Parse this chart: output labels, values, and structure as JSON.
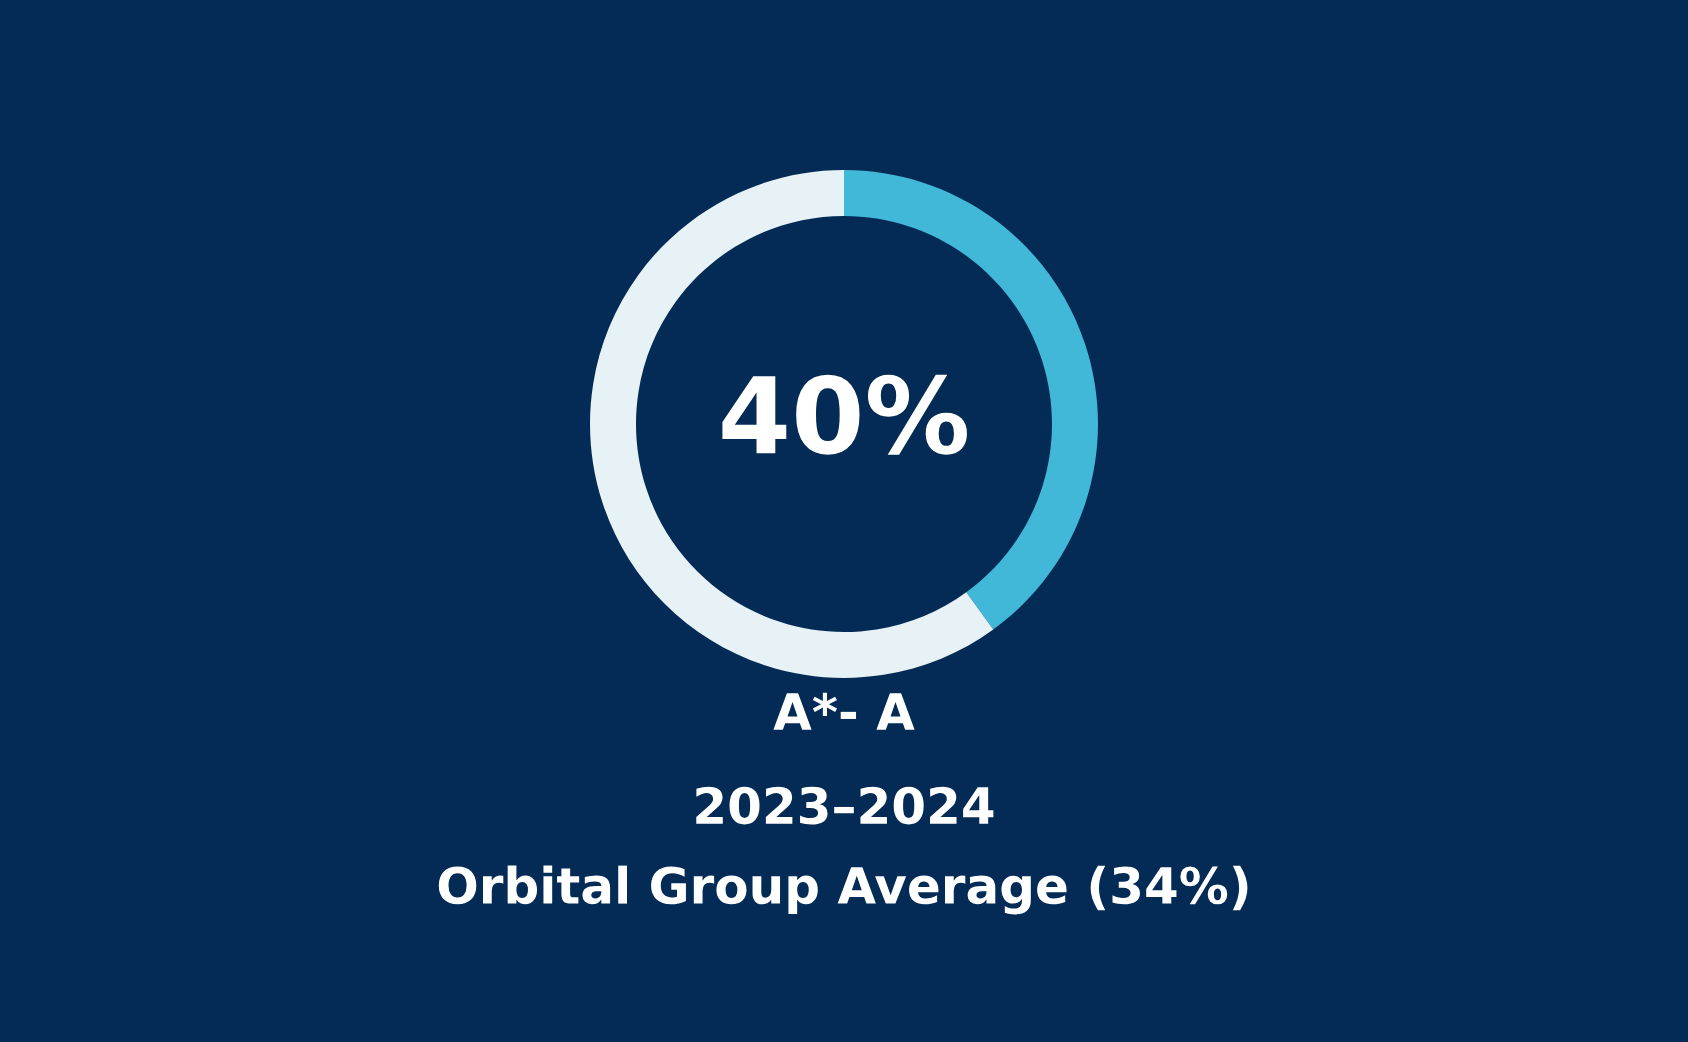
{
  "chart_data": {
    "type": "donut",
    "title": "A*- A",
    "categories": [
      null,
      null
    ],
    "values": [
      40,
      60
    ],
    "colors": [
      "#42b8d8",
      "#e6f2f5"
    ],
    "value_labels": [
      "40%",
      null
    ],
    "subtitle": "2023–2024",
    "annotations": [
      "Orbital Group Average (34%)"
    ]
  }
}
